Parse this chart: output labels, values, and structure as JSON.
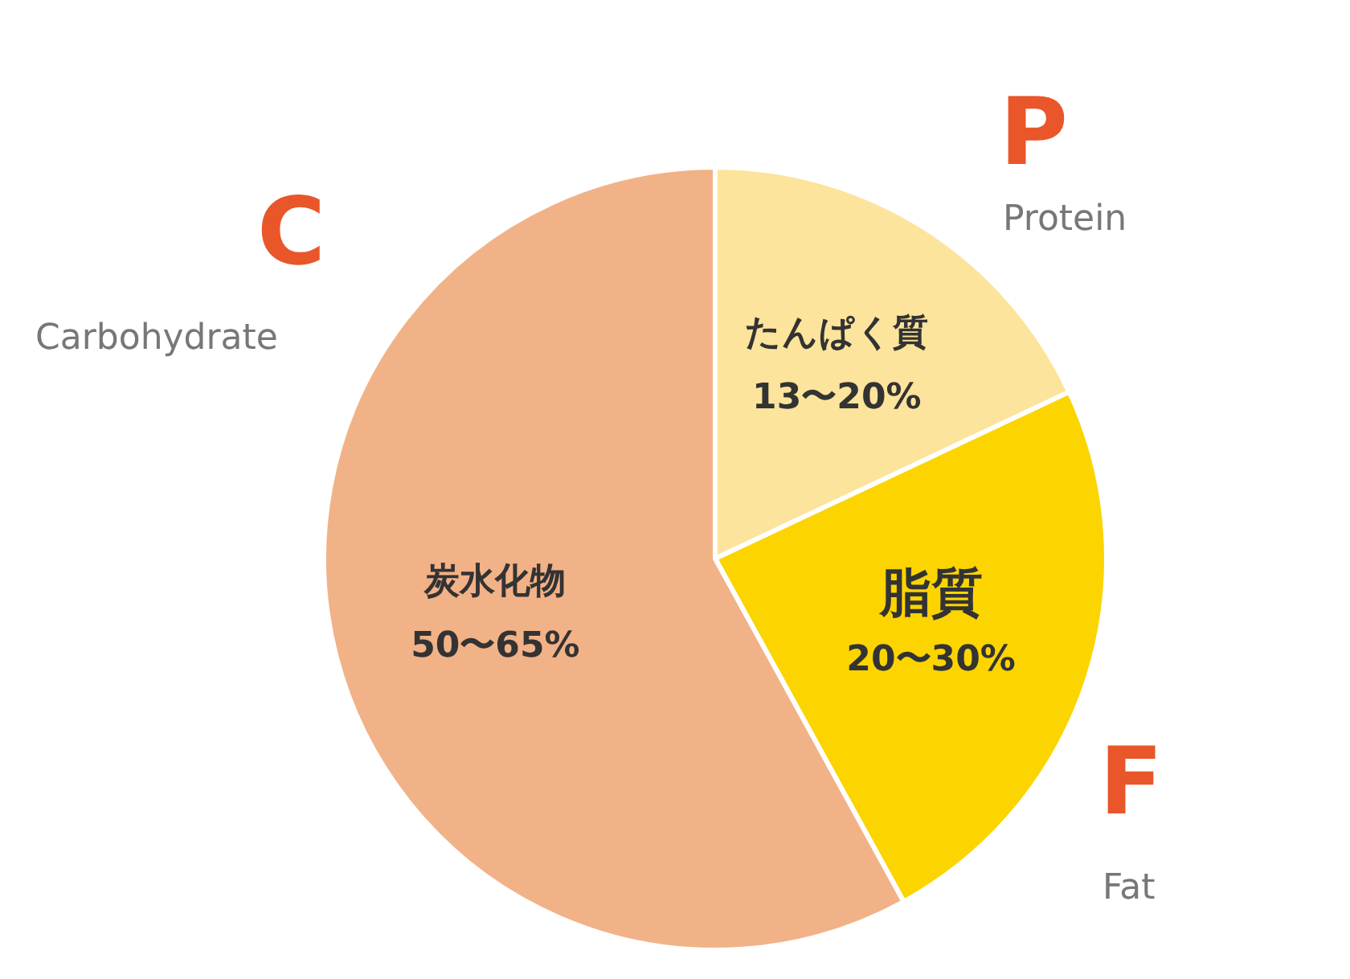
{
  "chart_data": {
    "type": "pie",
    "categories": [
      "たんぱく質",
      "脂質",
      "炭水化物"
    ],
    "values": [
      18,
      24,
      58
    ],
    "colors": [
      "#fde49c",
      "#fcd400",
      "#f2b287"
    ],
    "annotations": [
      "13〜20%",
      "20〜30%",
      "50〜65%",
      "P",
      "Protein",
      "F",
      "Fat",
      "C",
      "Carbohydrate"
    ],
    "legend": false
  }
}
